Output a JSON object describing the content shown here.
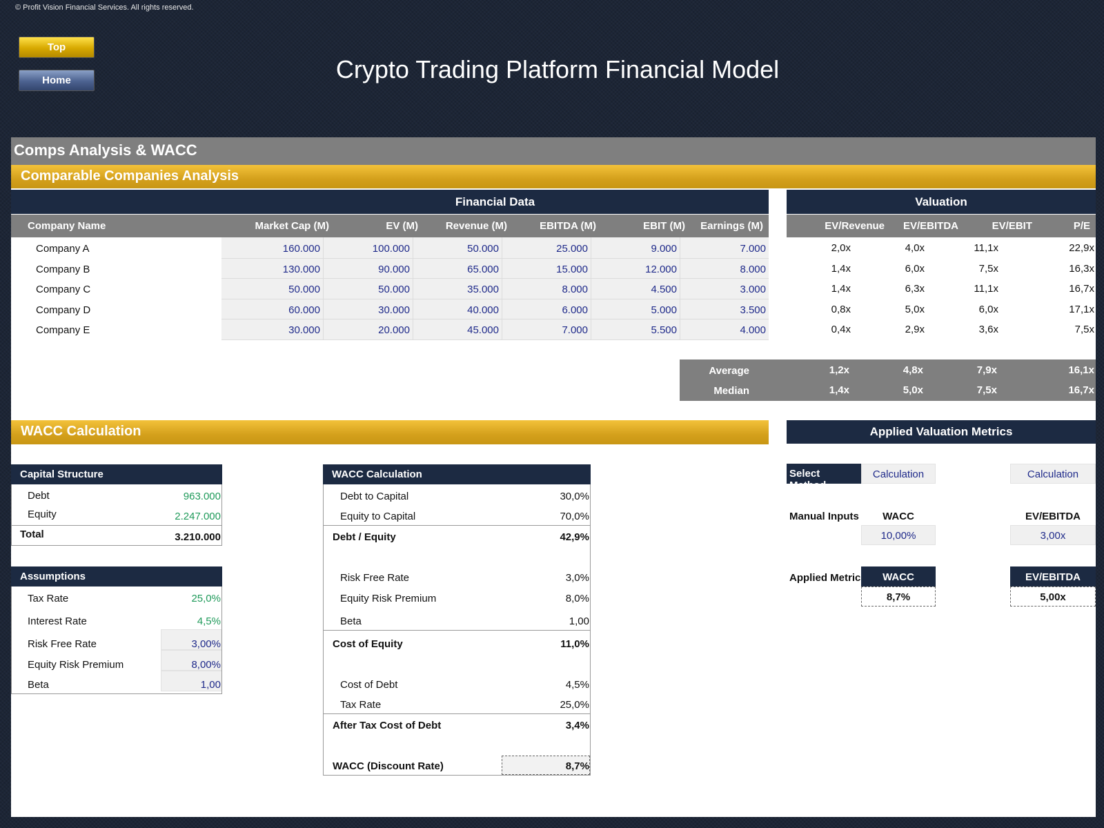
{
  "copyright": "© Profit Vision Financial Services. All rights reserved.",
  "nav": {
    "top_label": "Top",
    "home_label": "Home"
  },
  "title": "Crypto Trading Platform Financial Model",
  "section_title": "Comps Analysis & WACC",
  "comps": {
    "title": "Comparable Companies Analysis",
    "financial_header": "Financial Data",
    "valuation_header": "Valuation",
    "columns": [
      "Company Name",
      "Market Cap (M)",
      "EV (M)",
      "Revenue (M)",
      "EBITDA (M)",
      "EBIT (M)",
      "Earnings (M)",
      "EV/Revenue",
      "EV/EBITDA",
      "EV/EBIT",
      "P/E"
    ],
    "rows": [
      {
        "name": "Company A",
        "mcap": "160.000",
        "ev": "100.000",
        "rev": "50.000",
        "ebitda": "25.000",
        "ebit": "9.000",
        "earn": "7.000",
        "ev_rev": "2,0x",
        "ev_ebitda": "4,0x",
        "ev_ebit": "11,1x",
        "pe": "22,9x"
      },
      {
        "name": "Company B",
        "mcap": "130.000",
        "ev": "90.000",
        "rev": "65.000",
        "ebitda": "15.000",
        "ebit": "12.000",
        "earn": "8.000",
        "ev_rev": "1,4x",
        "ev_ebitda": "6,0x",
        "ev_ebit": "7,5x",
        "pe": "16,3x"
      },
      {
        "name": "Company C",
        "mcap": "50.000",
        "ev": "50.000",
        "rev": "35.000",
        "ebitda": "8.000",
        "ebit": "4.500",
        "earn": "3.000",
        "ev_rev": "1,4x",
        "ev_ebitda": "6,3x",
        "ev_ebit": "11,1x",
        "pe": "16,7x"
      },
      {
        "name": "Company D",
        "mcap": "60.000",
        "ev": "30.000",
        "rev": "40.000",
        "ebitda": "6.000",
        "ebit": "5.000",
        "earn": "3.500",
        "ev_rev": "0,8x",
        "ev_ebitda": "5,0x",
        "ev_ebit": "6,0x",
        "pe": "17,1x"
      },
      {
        "name": "Company E",
        "mcap": "30.000",
        "ev": "20.000",
        "rev": "45.000",
        "ebitda": "7.000",
        "ebit": "5.500",
        "earn": "4.000",
        "ev_rev": "0,4x",
        "ev_ebitda": "2,9x",
        "ev_ebit": "3,6x",
        "pe": "7,5x"
      }
    ],
    "average": {
      "label": "Average",
      "ev_rev": "1,2x",
      "ev_ebitda": "4,8x",
      "ev_ebit": "7,9x",
      "pe": "16,1x"
    },
    "median": {
      "label": "Median",
      "ev_rev": "1,4x",
      "ev_ebitda": "5,0x",
      "ev_ebit": "7,5x",
      "pe": "16,7x"
    }
  },
  "wacc_section_title": "WACC Calculation",
  "capital_structure": {
    "title": "Capital Structure",
    "debt_label": "Debt",
    "debt": "963.000",
    "equity_label": "Equity",
    "equity": "2.247.000",
    "total_label": "Total",
    "total": "3.210.000"
  },
  "assumptions": {
    "title": "Assumptions",
    "tax_label": "Tax Rate",
    "tax": "25,0%",
    "interest_label": "Interest Rate",
    "interest": "4,5%",
    "rf_label": "Risk Free Rate",
    "rf": "3,00%",
    "erp_label": "Equity Risk Premium",
    "erp": "8,00%",
    "beta_label": "Beta",
    "beta": "1,00"
  },
  "wacc_calc": {
    "title": "WACC Calculation",
    "d2c_label": "Debt to Capital",
    "d2c": "30,0%",
    "e2c_label": "Equity to Capital",
    "e2c": "70,0%",
    "de_label": "Debt / Equity",
    "de": "42,9%",
    "rf_label": "Risk Free Rate",
    "rf": "3,0%",
    "erp_label": "Equity Risk Premium",
    "erp": "8,0%",
    "beta_label": "Beta",
    "beta": "1,00",
    "coe_label": "Cost of Equity",
    "coe": "11,0%",
    "cod_label": "Cost of Debt",
    "cod": "4,5%",
    "tax_label": "Tax Rate",
    "tax": "25,0%",
    "atcod_label": "After Tax Cost of Debt",
    "atcod": "3,4%",
    "wacc_label": "WACC (Discount Rate)",
    "wacc": "8,7%"
  },
  "applied": {
    "title": "Applied Valuation Metrics",
    "select_label": "Select Method",
    "method_wacc": "Calculation",
    "method_ebitda": "Calculation",
    "manual_label": "Manual Inputs",
    "wacc_hdr": "WACC",
    "ebitda_hdr": "EV/EBITDA",
    "manual_wacc": "10,00%",
    "manual_ebitda": "3,00x",
    "applied_label": "Applied Metrics",
    "applied_wacc": "8,7%",
    "applied_ebitda": "5,00x"
  }
}
